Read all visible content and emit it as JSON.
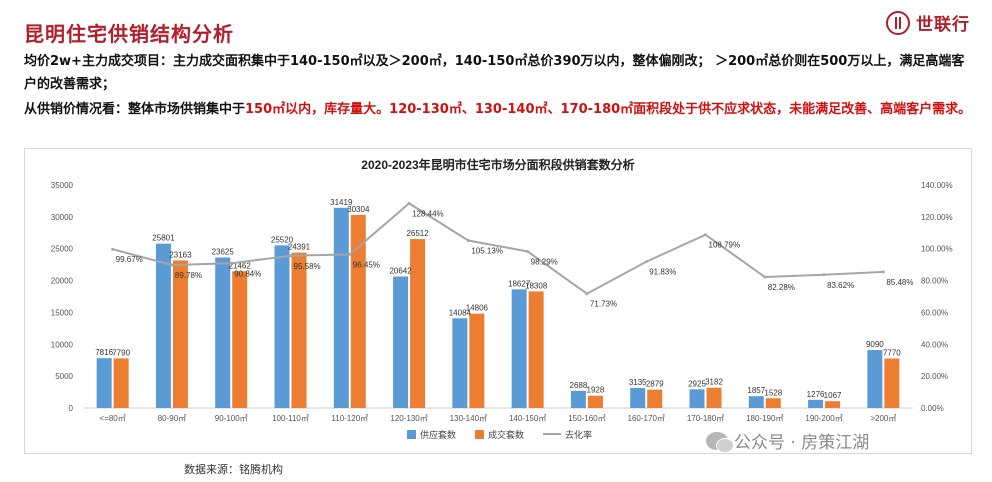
{
  "header": {
    "title": "昆明住宅供销结构分析",
    "logo_text": "世联行"
  },
  "paragraphs": {
    "p1": "均价2w+主力成交项目：主力成交面积集中于140-150㎡以及＞200㎡，140-150㎡总价390万以内，整体偏刚改； ＞200㎡总价则在500万以上，满足高端客户的改善需求；",
    "p2_prefix": "从供销价情况看：整体市场供销集中于",
    "p2_red": "150㎡以内，库存量大。120-130㎡、130-140㎡、170-180㎡面积段处于供不应求状态，未能满足改善、高端客户需求。"
  },
  "footer": {
    "source": "数据来源：铭腾机构",
    "watermark": "公众号 · 房策江湖"
  },
  "colors": {
    "supply": "#5b9bd5",
    "deal": "#ed7d31",
    "rate": "#a5a5a5",
    "title_red": "#b0202a",
    "highlight_red": "#d01010"
  },
  "chart_data": {
    "type": "bar",
    "title": "2020-2023年昆明市住宅市场分面积段供销套数分析",
    "categories": [
      "<=80㎡",
      "80-90㎡",
      "90-100㎡",
      "100-110㎡",
      "110-120㎡",
      "120-130㎡",
      "130-140㎡",
      "140-150㎡",
      "150-160㎡",
      "160-170㎡",
      "170-180㎡",
      "180-190㎡",
      "190-200㎡",
      ">200㎡"
    ],
    "series": [
      {
        "name": "供应套数",
        "type": "bar",
        "axis": "left",
        "values": [
          7816,
          25801,
          23625,
          25520,
          31419,
          20642,
          14084,
          18627,
          2688,
          3135,
          2925,
          1857,
          1276,
          9090
        ],
        "labels": [
          "7816",
          "25801",
          "23625",
          "25520",
          "31419",
          "20642",
          "14084",
          "18627",
          "2688",
          "3135",
          "2925",
          "1857",
          "1276",
          "9090"
        ]
      },
      {
        "name": "成交套数",
        "type": "bar",
        "axis": "left",
        "values": [
          7790,
          23163,
          21462,
          24391,
          30304,
          26512,
          14806,
          18308,
          1928,
          2879,
          3182,
          1528,
          1067,
          7770
        ],
        "labels": [
          "7790",
          "23163",
          "21462",
          "24391",
          "30304",
          "26512",
          "14806",
          "18308",
          "1928",
          "2879",
          "3182",
          "1528",
          "1067",
          "7770"
        ]
      },
      {
        "name": "去化率",
        "type": "line",
        "axis": "right",
        "values": [
          99.67,
          89.78,
          90.84,
          95.58,
          96.45,
          128.44,
          105.13,
          98.29,
          71.73,
          91.83,
          108.79,
          82.28,
          83.62,
          85.48
        ],
        "labels": [
          "99.67%",
          "89.78%",
          "90.84%",
          "95.58%",
          "96.45%",
          "128.44%",
          "105.13%",
          "98.29%",
          "71.73%",
          "91.83%",
          "108.79%",
          "82.28%",
          "83.62%",
          "85.48%"
        ]
      }
    ],
    "y_left": {
      "min": 0,
      "max": 35000,
      "ticks": [
        "0",
        "5000",
        "10000",
        "15000",
        "20000",
        "25000",
        "30000",
        "35000"
      ]
    },
    "y_right": {
      "min": 0,
      "max": 140,
      "ticks": [
        "0.00%",
        "20.00%",
        "40.00%",
        "60.00%",
        "80.00%",
        "100.00%",
        "120.00%",
        "140.00%"
      ]
    },
    "legend_position": "bottom",
    "grid": false
  }
}
